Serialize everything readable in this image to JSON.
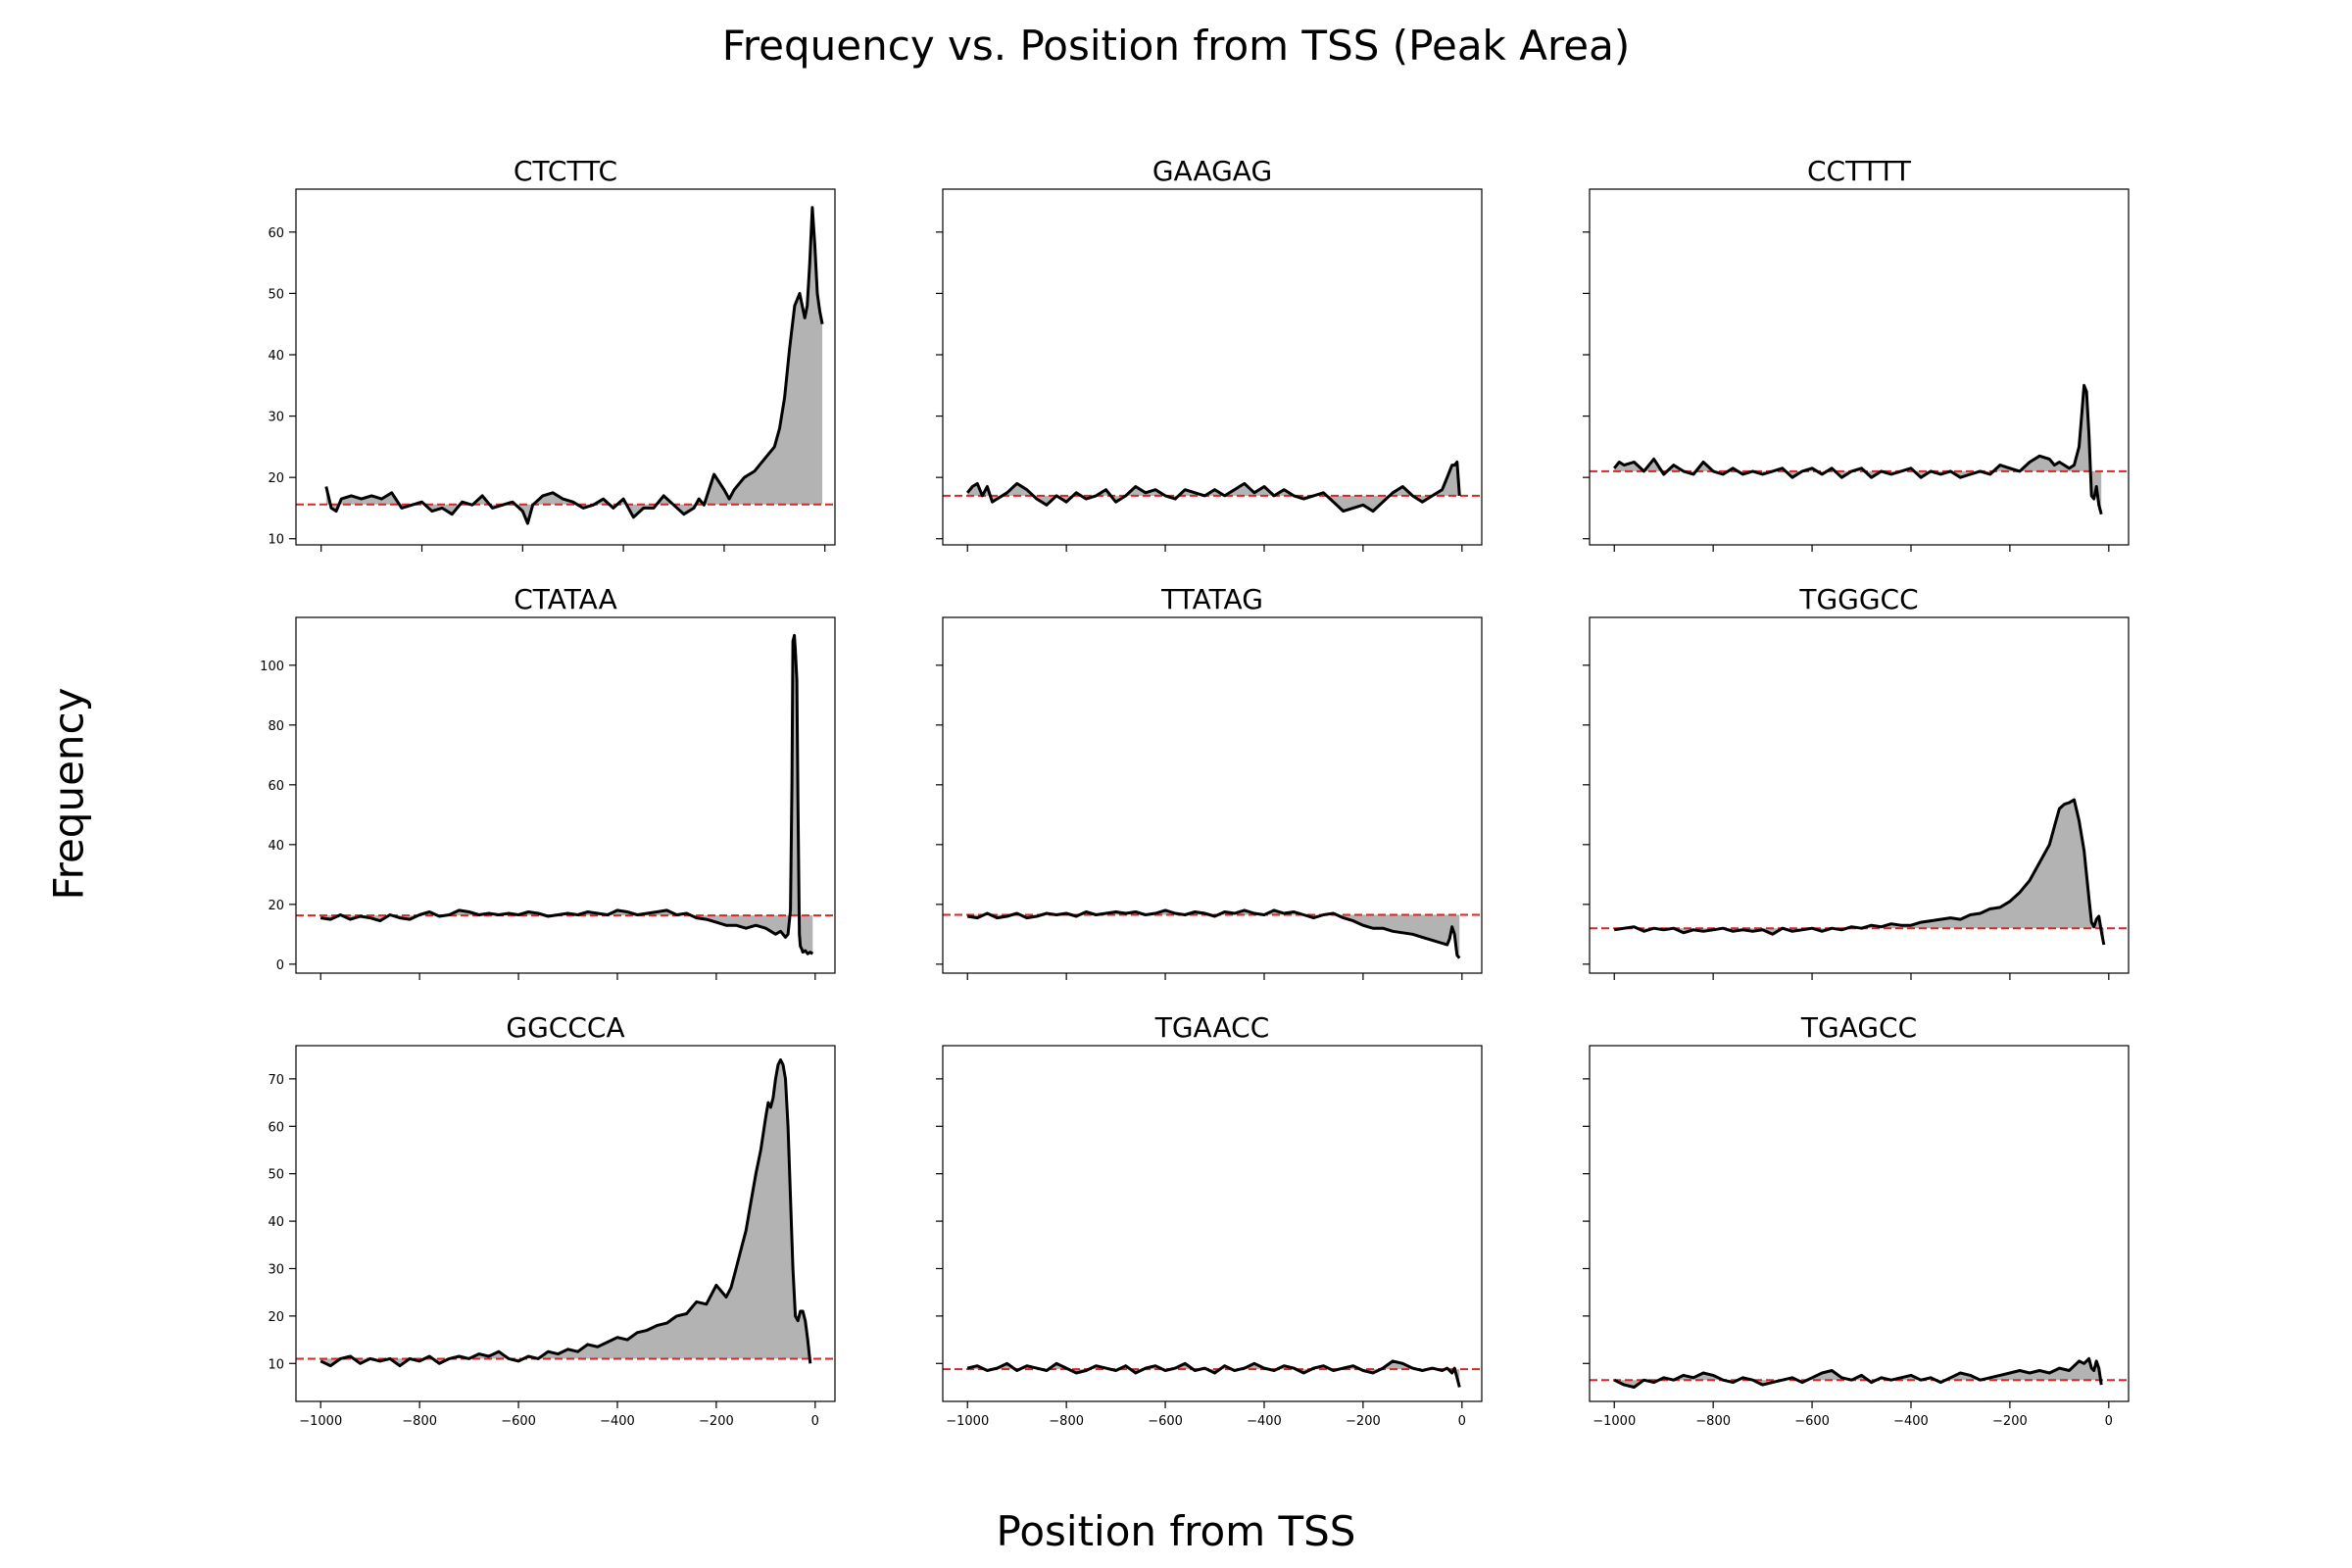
{
  "figure": {
    "title": "Frequency vs. Position from TSS (Peak Area)",
    "xlabel": "Position from TSS",
    "ylabel": "Frequency"
  },
  "colors": {
    "line": "#000000",
    "fill": "#b3b3b3",
    "baseline": "#d62728",
    "frame": "#000000"
  },
  "chart_data": [
    {
      "type": "area",
      "title": "CTCTTC",
      "baseline": 15.6,
      "xlim": [
        -1050,
        20
      ],
      "ylim": [
        9,
        67
      ],
      "xticks": [
        -1000,
        -800,
        -600,
        -400,
        -200,
        0
      ],
      "yticks": [
        10,
        20,
        30,
        40,
        50,
        60
      ],
      "show_xticklabels": false,
      "show_yticklabels": true,
      "x": [
        -990,
        -980,
        -970,
        -960,
        -940,
        -920,
        -900,
        -880,
        -860,
        -840,
        -820,
        -800,
        -780,
        -760,
        -740,
        -720,
        -700,
        -680,
        -660,
        -640,
        -620,
        -600,
        -590,
        -580,
        -560,
        -540,
        -520,
        -500,
        -480,
        -460,
        -440,
        -420,
        -400,
        -380,
        -360,
        -340,
        -320,
        -300,
        -280,
        -260,
        -250,
        -240,
        -220,
        -200,
        -190,
        -180,
        -160,
        -140,
        -120,
        -100,
        -90,
        -80,
        -70,
        -60,
        -50,
        -40,
        -35,
        -30,
        -25,
        -20,
        -15,
        -10,
        -5
      ],
      "y": [
        18.5,
        15,
        14.5,
        16.5,
        17,
        16.5,
        17,
        16.5,
        17.5,
        15,
        15.5,
        16,
        14.5,
        15,
        14,
        16,
        15.5,
        17,
        15,
        15.5,
        16,
        14.5,
        12.5,
        15.5,
        17,
        17.5,
        16.5,
        16,
        15,
        15.5,
        16.5,
        15,
        16.5,
        13.5,
        15,
        15,
        17,
        15.5,
        14,
        15,
        16.5,
        15.5,
        20.5,
        18,
        16.5,
        18,
        20,
        21,
        23,
        25,
        28,
        33,
        41,
        48,
        50,
        46,
        48,
        55,
        64,
        58,
        50,
        47,
        45
      ]
    },
    {
      "type": "area",
      "title": "GAAGAG",
      "baseline": 17,
      "xlim": [
        -1050,
        40
      ],
      "ylim": [
        9,
        67
      ],
      "xticks": [
        -1000,
        -800,
        -600,
        -400,
        -200,
        0
      ],
      "yticks": [
        10,
        20,
        30,
        40,
        50,
        60
      ],
      "show_xticklabels": false,
      "show_yticklabels": false,
      "x": [
        -1000,
        -990,
        -980,
        -970,
        -960,
        -950,
        -940,
        -920,
        -900,
        -880,
        -860,
        -840,
        -820,
        -800,
        -780,
        -760,
        -740,
        -720,
        -700,
        -680,
        -660,
        -640,
        -620,
        -600,
        -580,
        -560,
        -540,
        -520,
        -500,
        -480,
        -460,
        -440,
        -420,
        -400,
        -380,
        -360,
        -340,
        -320,
        -300,
        -280,
        -260,
        -240,
        -220,
        -200,
        -180,
        -160,
        -140,
        -120,
        -100,
        -80,
        -60,
        -40,
        -30,
        -20,
        -15,
        -10,
        -5
      ],
      "y": [
        17.5,
        18.5,
        19,
        17,
        18.5,
        16,
        16.5,
        17.5,
        19,
        18,
        16.5,
        15.5,
        17,
        16,
        17.5,
        16.5,
        17,
        18,
        16,
        17,
        18.5,
        17.5,
        18,
        17,
        16.5,
        18,
        17.5,
        17,
        18,
        17,
        18,
        19,
        17.5,
        18.5,
        17,
        18,
        17,
        16.5,
        17,
        17.5,
        16,
        14.5,
        15,
        15.5,
        14.5,
        16,
        17.5,
        18.5,
        17,
        16,
        17,
        18,
        20,
        22,
        22,
        22.5,
        17
      ]
    },
    {
      "type": "area",
      "title": "CCTTTT",
      "baseline": 21,
      "xlim": [
        -1050,
        40
      ],
      "ylim": [
        9,
        67
      ],
      "xticks": [
        -1000,
        -800,
        -600,
        -400,
        -200,
        0
      ],
      "yticks": [
        10,
        20,
        30,
        40,
        50,
        60
      ],
      "show_xticklabels": false,
      "show_yticklabels": false,
      "x": [
        -1000,
        -990,
        -980,
        -960,
        -940,
        -920,
        -900,
        -880,
        -860,
        -840,
        -820,
        -800,
        -780,
        -760,
        -740,
        -720,
        -700,
        -680,
        -660,
        -640,
        -620,
        -600,
        -580,
        -560,
        -540,
        -520,
        -500,
        -480,
        -460,
        -440,
        -420,
        -400,
        -380,
        -360,
        -340,
        -320,
        -300,
        -280,
        -260,
        -240,
        -220,
        -200,
        -180,
        -160,
        -140,
        -120,
        -110,
        -100,
        -90,
        -80,
        -70,
        -60,
        -55,
        -50,
        -45,
        -40,
        -35,
        -30,
        -25,
        -20,
        -15
      ],
      "y": [
        21.5,
        22.5,
        22,
        22.5,
        21,
        23,
        20.5,
        22,
        21,
        20.5,
        22.5,
        21,
        20.5,
        21.5,
        20.5,
        21,
        20.5,
        21,
        21.5,
        20,
        21,
        21.5,
        20.5,
        21.5,
        20,
        21,
        21.5,
        20,
        21,
        20.5,
        21,
        21.5,
        20,
        21,
        20.5,
        21,
        20,
        20.5,
        21,
        20.5,
        22,
        21.5,
        21,
        22.5,
        23.5,
        23,
        22,
        22.5,
        22,
        21.5,
        22,
        25,
        30,
        35,
        34,
        27,
        17,
        16.5,
        18.5,
        15.5,
        14
      ]
    },
    {
      "type": "area",
      "title": "CTATAA",
      "baseline": 16.3,
      "xlim": [
        -1050,
        40
      ],
      "ylim": [
        -3,
        116
      ],
      "xticks": [
        -1000,
        -800,
        -600,
        -400,
        -200,
        0
      ],
      "yticks": [
        0,
        20,
        40,
        60,
        80,
        100
      ],
      "show_xticklabels": false,
      "show_yticklabels": true,
      "x": [
        -1000,
        -980,
        -960,
        -940,
        -920,
        -900,
        -880,
        -860,
        -840,
        -820,
        -800,
        -780,
        -760,
        -740,
        -720,
        -700,
        -680,
        -660,
        -640,
        -620,
        -600,
        -580,
        -560,
        -540,
        -520,
        -500,
        -480,
        -460,
        -440,
        -420,
        -400,
        -380,
        -360,
        -340,
        -320,
        -300,
        -280,
        -260,
        -240,
        -220,
        -200,
        -180,
        -160,
        -140,
        -120,
        -100,
        -80,
        -70,
        -60,
        -55,
        -50,
        -47,
        -45,
        -42,
        -40,
        -37,
        -35,
        -32,
        -30,
        -27,
        -25,
        -20,
        -15,
        -10,
        -5
      ],
      "y": [
        15.5,
        15,
        16.5,
        15,
        16,
        15.5,
        14.5,
        16.5,
        15.5,
        15,
        16.5,
        17.5,
        16,
        16.5,
        18,
        17.5,
        16.5,
        17,
        16.5,
        17,
        16.5,
        17.5,
        17,
        16,
        16.5,
        17,
        16.5,
        17.5,
        17,
        16.5,
        18,
        17.5,
        16.5,
        17,
        17.5,
        18,
        16.5,
        17,
        15.5,
        15,
        14,
        13,
        13,
        12,
        13,
        12,
        10,
        11,
        9,
        10,
        18,
        60,
        108,
        110,
        105,
        95,
        55,
        10,
        6,
        5,
        4,
        4.5,
        3.5,
        4,
        3.5
      ]
    },
    {
      "type": "area",
      "title": "TTATAG",
      "baseline": 16.5,
      "xlim": [
        -1050,
        40
      ],
      "ylim": [
        -3,
        116
      ],
      "xticks": [
        -1000,
        -800,
        -600,
        -400,
        -200,
        0
      ],
      "yticks": [
        0,
        20,
        40,
        60,
        80,
        100
      ],
      "show_xticklabels": false,
      "show_yticklabels": false,
      "x": [
        -1000,
        -980,
        -960,
        -940,
        -920,
        -900,
        -880,
        -860,
        -840,
        -820,
        -800,
        -780,
        -760,
        -740,
        -720,
        -700,
        -680,
        -660,
        -640,
        -620,
        -600,
        -580,
        -560,
        -540,
        -520,
        -500,
        -480,
        -460,
        -440,
        -420,
        -400,
        -380,
        -360,
        -340,
        -320,
        -300,
        -280,
        -260,
        -240,
        -220,
        -200,
        -180,
        -160,
        -140,
        -120,
        -100,
        -80,
        -60,
        -50,
        -40,
        -30,
        -25,
        -20,
        -15,
        -10,
        -5
      ],
      "y": [
        16,
        15.5,
        17,
        15.5,
        16,
        17,
        15.5,
        16,
        17,
        16.5,
        17,
        16,
        17.5,
        16.5,
        17,
        17.5,
        17,
        17.5,
        16.5,
        17,
        18,
        17,
        16.5,
        17.5,
        17,
        16,
        17.5,
        17,
        18,
        17,
        16.5,
        18,
        17,
        17.5,
        16.5,
        15.5,
        16.5,
        17,
        15.5,
        14.5,
        13,
        12,
        12,
        11,
        10.5,
        10,
        9,
        8,
        7.5,
        7,
        6.5,
        8.5,
        12.5,
        10,
        3,
        2
      ]
    },
    {
      "type": "area",
      "title": "TGGGCC",
      "baseline": 12,
      "xlim": [
        -1050,
        40
      ],
      "ylim": [
        -3,
        116
      ],
      "xticks": [
        -1000,
        -800,
        -600,
        -400,
        -200,
        0
      ],
      "yticks": [
        0,
        20,
        40,
        60,
        80,
        100
      ],
      "show_xticklabels": false,
      "show_yticklabels": false,
      "x": [
        -1000,
        -980,
        -960,
        -940,
        -920,
        -900,
        -880,
        -860,
        -840,
        -820,
        -800,
        -780,
        -760,
        -740,
        -720,
        -700,
        -680,
        -660,
        -640,
        -620,
        -600,
        -580,
        -560,
        -540,
        -520,
        -500,
        -480,
        -460,
        -440,
        -420,
        -400,
        -380,
        -360,
        -340,
        -320,
        -300,
        -280,
        -260,
        -240,
        -220,
        -200,
        -180,
        -160,
        -140,
        -120,
        -110,
        -100,
        -90,
        -80,
        -70,
        -60,
        -50,
        -40,
        -35,
        -30,
        -25,
        -20,
        -15,
        -10
      ],
      "y": [
        11.5,
        12,
        12.5,
        11,
        12,
        11.5,
        12,
        10.5,
        11.5,
        11,
        11.5,
        12,
        11,
        11.5,
        11,
        11.5,
        10,
        12,
        11,
        11.5,
        12,
        11,
        12,
        11.5,
        12.5,
        12,
        13,
        12.5,
        13.5,
        13,
        13,
        14,
        14.5,
        15,
        15.5,
        15,
        16.5,
        17,
        18.5,
        19,
        21,
        24,
        28,
        34,
        40,
        46,
        52,
        53.5,
        54,
        55,
        48,
        38,
        22,
        14,
        12.5,
        15,
        16,
        11,
        6.5
      ]
    },
    {
      "type": "area",
      "title": "GGCCCA",
      "baseline": 11,
      "xlim": [
        -1050,
        40
      ],
      "ylim": [
        2,
        77
      ],
      "xticks": [
        -1000,
        -800,
        -600,
        -400,
        -200,
        0
      ],
      "yticks": [
        10,
        20,
        30,
        40,
        50,
        60,
        70
      ],
      "show_xticklabels": true,
      "show_yticklabels": true,
      "x": [
        -1000,
        -980,
        -960,
        -940,
        -920,
        -900,
        -880,
        -860,
        -840,
        -820,
        -800,
        -780,
        -760,
        -740,
        -720,
        -700,
        -680,
        -660,
        -640,
        -620,
        -600,
        -580,
        -560,
        -540,
        -520,
        -500,
        -480,
        -460,
        -440,
        -420,
        -400,
        -380,
        -360,
        -340,
        -320,
        -300,
        -280,
        -260,
        -240,
        -220,
        -200,
        -180,
        -170,
        -160,
        -150,
        -140,
        -130,
        -120,
        -110,
        -100,
        -95,
        -90,
        -85,
        -80,
        -75,
        -70,
        -65,
        -60,
        -55,
        -50,
        -45,
        -40,
        -35,
        -30,
        -25,
        -20,
        -15,
        -10
      ],
      "y": [
        10.5,
        9.5,
        11,
        11.5,
        10,
        11,
        10.5,
        11,
        9.5,
        11,
        10.5,
        11.5,
        10,
        11,
        11.5,
        11,
        12,
        11.5,
        12.5,
        11,
        10.5,
        11.5,
        11,
        12.5,
        12,
        13,
        12.5,
        14,
        13.5,
        14.5,
        15.5,
        15,
        16.5,
        17,
        18,
        18.5,
        20,
        20.5,
        23,
        22.5,
        26.5,
        24,
        26,
        30,
        34,
        38,
        44,
        50,
        55,
        62,
        65,
        64,
        66,
        70,
        73,
        74,
        73,
        70,
        60,
        45,
        30,
        20,
        19,
        21,
        21,
        19,
        15,
        10
      ]
    },
    {
      "type": "area",
      "title": "TGAACC",
      "baseline": 8.8,
      "xlim": [
        -1050,
        40
      ],
      "ylim": [
        2,
        77
      ],
      "xticks": [
        -1000,
        -800,
        -600,
        -400,
        -200,
        0
      ],
      "yticks": [
        10,
        20,
        30,
        40,
        50,
        60,
        70
      ],
      "show_xticklabels": true,
      "show_yticklabels": false,
      "x": [
        -1000,
        -980,
        -960,
        -940,
        -920,
        -900,
        -880,
        -860,
        -840,
        -820,
        -800,
        -780,
        -760,
        -740,
        -720,
        -700,
        -680,
        -660,
        -640,
        -620,
        -600,
        -580,
        -560,
        -540,
        -520,
        -500,
        -480,
        -460,
        -440,
        -420,
        -400,
        -380,
        -360,
        -340,
        -320,
        -300,
        -280,
        -260,
        -240,
        -220,
        -200,
        -180,
        -160,
        -140,
        -120,
        -100,
        -80,
        -60,
        -40,
        -30,
        -20,
        -15,
        -10,
        -5
      ],
      "y": [
        9,
        9.5,
        8.5,
        9,
        10,
        8.5,
        9.5,
        9,
        8.5,
        10,
        9,
        8,
        8.5,
        9.5,
        9,
        8.5,
        9.5,
        8,
        9,
        9.5,
        8.5,
        9,
        10,
        8.5,
        9,
        8,
        9.5,
        8.5,
        9,
        10,
        9,
        8.5,
        9.5,
        9,
        8,
        9,
        9.5,
        8.5,
        9,
        9.5,
        8.5,
        8,
        9,
        10.5,
        10,
        9,
        8.5,
        9,
        8.5,
        9,
        8,
        9,
        7,
        5
      ]
    },
    {
      "type": "area",
      "title": "TGAGCC",
      "baseline": 6.5,
      "xlim": [
        -1050,
        40
      ],
      "ylim": [
        2,
        77
      ],
      "xticks": [
        -1000,
        -800,
        -600,
        -400,
        -200,
        0
      ],
      "yticks": [
        10,
        20,
        30,
        40,
        50,
        60,
        70
      ],
      "show_xticklabels": true,
      "show_yticklabels": false,
      "x": [
        -1000,
        -980,
        -960,
        -940,
        -920,
        -900,
        -880,
        -860,
        -840,
        -820,
        -800,
        -780,
        -760,
        -740,
        -720,
        -700,
        -680,
        -660,
        -640,
        -620,
        -600,
        -580,
        -560,
        -540,
        -520,
        -500,
        -480,
        -460,
        -440,
        -420,
        -400,
        -380,
        -360,
        -340,
        -320,
        -300,
        -280,
        -260,
        -240,
        -220,
        -200,
        -180,
        -160,
        -140,
        -120,
        -100,
        -80,
        -70,
        -60,
        -50,
        -40,
        -35,
        -30,
        -25,
        -20,
        -15
      ],
      "y": [
        6.5,
        5.5,
        5,
        6.5,
        6,
        7,
        6.5,
        7.5,
        7,
        8,
        7.5,
        6.5,
        6,
        7,
        6.5,
        5.5,
        6,
        6.5,
        7,
        6,
        7,
        8,
        8.5,
        7,
        6.5,
        7.5,
        6,
        7,
        6.5,
        7,
        7.5,
        6.5,
        7,
        6,
        7,
        8,
        7.5,
        6.5,
        7,
        7.5,
        8,
        8.5,
        8,
        8.5,
        8,
        9,
        8.5,
        9.5,
        10.5,
        10,
        11,
        9,
        8.5,
        10.5,
        9,
        5.5
      ]
    }
  ]
}
